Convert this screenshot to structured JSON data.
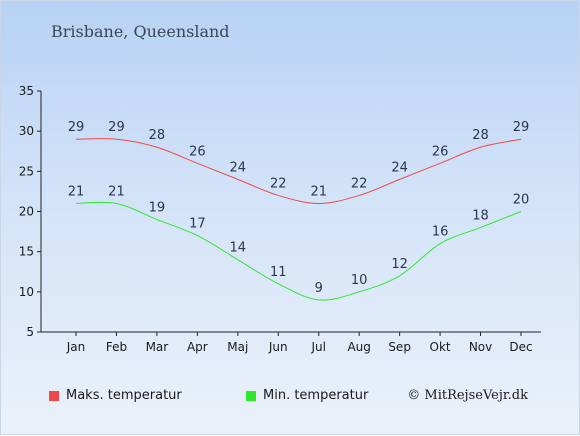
{
  "chart_data": {
    "type": "line",
    "title": "Brisbane, Queensland",
    "categories": [
      "Jan",
      "Feb",
      "Mar",
      "Apr",
      "Maj",
      "Jun",
      "Jul",
      "Aug",
      "Sep",
      "Okt",
      "Nov",
      "Dec"
    ],
    "series": [
      {
        "name": "Maks. temperatur",
        "color": "#f04848",
        "values": [
          29,
          29,
          28,
          26,
          24,
          22,
          21,
          22,
          24,
          26,
          28,
          29
        ]
      },
      {
        "name": "Min. temperatur",
        "color": "#2ee82e",
        "values": [
          21,
          21,
          19,
          17,
          14,
          11,
          9,
          10,
          12,
          16,
          18,
          20
        ]
      }
    ],
    "yticks": [
      5,
      10,
      15,
      20,
      25,
      30,
      35
    ],
    "ylim": [
      5,
      35
    ],
    "grid": false,
    "legend_position": "bottom-left"
  },
  "copyright": "© MitRejseVejr.dk"
}
